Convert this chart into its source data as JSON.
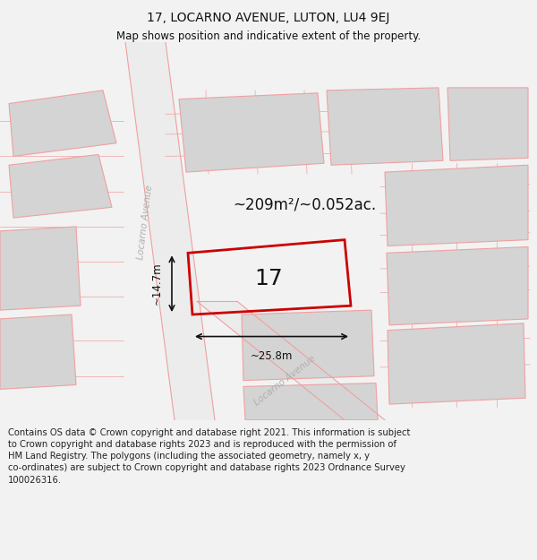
{
  "title": "17, LOCARNO AVENUE, LUTON, LU4 9EJ",
  "subtitle": "Map shows position and indicative extent of the property.",
  "footer": "Contains OS data © Crown copyright and database right 2021. This information is subject\nto Crown copyright and database rights 2023 and is reproduced with the permission of\nHM Land Registry. The polygons (including the associated geometry, namely x, y\nco-ordinates) are subject to Crown copyright and database rights 2023 Ordnance Survey\n100026316.",
  "area_label": "~209m²/~0.052ac.",
  "width_label": "~25.8m",
  "height_label": "~14.7m",
  "property_number": "17",
  "bg_color": "#f2f2f2",
  "map_bg": "#ffffff",
  "block_color": "#d4d4d4",
  "road_fill_color": "#ececec",
  "road_line_color": "#f0a0a0",
  "property_outline_color": "#cc0000",
  "dim_color": "#111111",
  "street_label_color": "#b0b0b0",
  "title_fontsize": 10,
  "subtitle_fontsize": 8.5,
  "footer_fontsize": 7.2,
  "area_fontsize": 12,
  "number_fontsize": 18,
  "dim_fontsize": 8.5,
  "street_fontsize": 7.5
}
